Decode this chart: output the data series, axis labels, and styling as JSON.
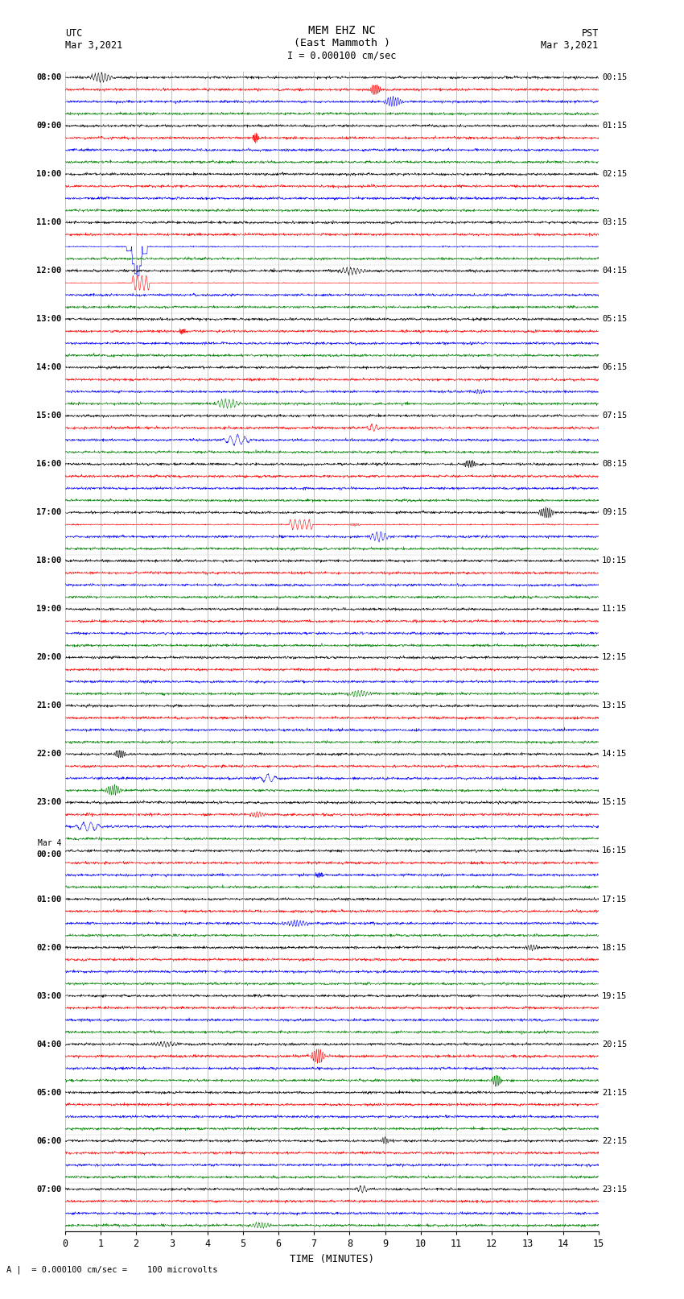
{
  "title_line1": "MEM EHZ NC",
  "title_line2": "(East Mammoth )",
  "scale_text": "I = 0.000100 cm/sec",
  "bottom_scale": "= 0.000100 cm/sec =    100 microvolts",
  "left_header": "UTC",
  "left_date": "Mar 3,2021",
  "right_header": "PST",
  "right_date": "Mar 3,2021",
  "xlabel": "TIME (MINUTES)",
  "utc_labels": [
    "08:00",
    "09:00",
    "10:00",
    "11:00",
    "12:00",
    "13:00",
    "14:00",
    "15:00",
    "16:00",
    "17:00",
    "18:00",
    "19:00",
    "20:00",
    "21:00",
    "22:00",
    "23:00",
    "Mar 4\n00:00",
    "01:00",
    "02:00",
    "03:00",
    "04:00",
    "05:00",
    "06:00",
    "07:00"
  ],
  "pst_labels": [
    "00:15",
    "01:15",
    "02:15",
    "03:15",
    "04:15",
    "05:15",
    "06:15",
    "07:15",
    "08:15",
    "09:15",
    "10:15",
    "11:15",
    "12:15",
    "13:15",
    "14:15",
    "15:15",
    "16:15",
    "17:15",
    "18:15",
    "19:15",
    "20:15",
    "21:15",
    "22:15",
    "23:15"
  ],
  "n_rows": 24,
  "n_traces_per_row": 4,
  "trace_colors": [
    "black",
    "red",
    "blue",
    "green"
  ],
  "x_min": 0,
  "x_max": 15,
  "x_ticks": [
    0,
    1,
    2,
    3,
    4,
    5,
    6,
    7,
    8,
    9,
    10,
    11,
    12,
    13,
    14,
    15
  ],
  "fig_width": 8.5,
  "fig_height": 16.13,
  "dpi": 100
}
